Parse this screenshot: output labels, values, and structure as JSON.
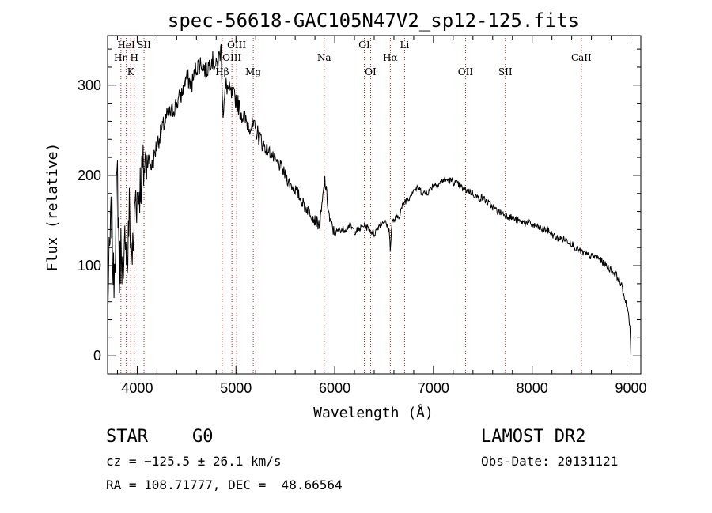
{
  "chart_data": {
    "type": "line",
    "title": "spec-56618-GAC105N47V2_sp12-125.fits",
    "xlabel": "Wavelength (Å)",
    "ylabel": "Flux (relative)",
    "xlim": [
      3700,
      9100
    ],
    "ylim": [
      -20,
      355
    ],
    "xticks": [
      4000,
      5000,
      6000,
      7000,
      8000,
      9000
    ],
    "yticks": [
      0,
      100,
      200,
      300
    ],
    "series": [
      {
        "x": [
          3700,
          3720,
          3740,
          3760,
          3780,
          3800,
          3820,
          3840,
          3860,
          3880,
          3900,
          3920,
          3940,
          3960,
          3980,
          4000,
          4050,
          4100,
          4150,
          4200,
          4250,
          4300,
          4350,
          4400,
          4450,
          4500,
          4550,
          4600,
          4650,
          4700,
          4750,
          4800,
          4850,
          4860,
          4870,
          4900,
          4950,
          5000,
          5050,
          5100,
          5150,
          5200,
          5250,
          5300,
          5350,
          5400,
          5450,
          5500,
          5550,
          5600,
          5650,
          5700,
          5750,
          5800,
          5850,
          5900,
          5950,
          6000,
          6050,
          6100,
          6150,
          6200,
          6250,
          6300,
          6350,
          6400,
          6450,
          6500,
          6550,
          6563,
          6580,
          6600,
          6650,
          6700,
          6750,
          6800,
          6850,
          6900,
          6950,
          7000,
          7050,
          7100,
          7150,
          7200,
          7250,
          7300,
          7350,
          7400,
          7450,
          7500,
          7550,
          7600,
          7650,
          7700,
          7750,
          7800,
          7850,
          7900,
          7950,
          8000,
          8050,
          8100,
          8150,
          8200,
          8250,
          8300,
          8350,
          8400,
          8450,
          8500,
          8550,
          8600,
          8650,
          8700,
          8750,
          8800,
          8850,
          8900,
          8920,
          8950,
          8970,
          8990,
          9000
        ],
        "y": [
          60,
          110,
          160,
          80,
          140,
          200,
          90,
          130,
          60,
          150,
          100,
          160,
          120,
          110,
          180,
          175,
          200,
          220,
          210,
          235,
          250,
          265,
          270,
          280,
          290,
          310,
          300,
          320,
          325,
          315,
          330,
          320,
          340,
          300,
          270,
          300,
          290,
          285,
          270,
          260,
          255,
          250,
          240,
          230,
          225,
          215,
          210,
          200,
          190,
          185,
          175,
          165,
          160,
          150,
          145,
          195,
          150,
          135,
          140,
          140,
          145,
          138,
          140,
          145,
          140,
          135,
          145,
          150,
          140,
          120,
          148,
          150,
          155,
          170,
          175,
          185,
          185,
          180,
          182,
          190,
          190,
          195,
          195,
          193,
          190,
          185,
          183,
          180,
          175,
          175,
          170,
          165,
          160,
          158,
          155,
          153,
          150,
          148,
          148,
          145,
          143,
          140,
          140,
          135,
          130,
          130,
          128,
          125,
          118,
          115,
          112,
          110,
          110,
          105,
          100,
          95,
          90,
          80,
          70,
          60,
          50,
          30,
          0
        ]
      }
    ],
    "spectral_lines": [
      {
        "label": "HeI",
        "wavelength": 3889,
        "row": 1
      },
      {
        "label": "Hη",
        "wavelength": 3835,
        "row": 2
      },
      {
        "label": "SII",
        "wavelength": 4069,
        "row": 1
      },
      {
        "label": "H",
        "wavelength": 3970,
        "row": 2
      },
      {
        "label": "K",
        "wavelength": 3934,
        "row": 3
      },
      {
        "label": "OIII",
        "wavelength": 5007,
        "row": 1
      },
      {
        "label": "OIII",
        "wavelength": 4959,
        "row": 2
      },
      {
        "label": "Hβ",
        "wavelength": 4861,
        "row": 3
      },
      {
        "label": "Mg",
        "wavelength": 5175,
        "row": 3
      },
      {
        "label": "Na",
        "wavelength": 5893,
        "row": 2
      },
      {
        "label": "OI",
        "wavelength": 6300,
        "row": 1
      },
      {
        "label": "OI",
        "wavelength": 6364,
        "row": 3
      },
      {
        "label": "Hα",
        "wavelength": 6563,
        "row": 2
      },
      {
        "label": "Li",
        "wavelength": 6708,
        "row": 1
      },
      {
        "label": "OII",
        "wavelength": 7325,
        "row": 3
      },
      {
        "label": "SII",
        "wavelength": 7728,
        "row": 3
      },
      {
        "label": "CaII",
        "wavelength": 8498,
        "row": 2
      }
    ],
    "line_color": "#000000",
    "marker_color": "#b22222",
    "grid": false
  },
  "info": {
    "object_class": "STAR",
    "subclass": "G0",
    "survey": "LAMOST DR2",
    "cz": "cz = −125.5 ± 26.1 km/s",
    "obs_date": "Obs-Date: 20131121",
    "coords": "RA = 108.71777, DEC =  48.66564"
  }
}
